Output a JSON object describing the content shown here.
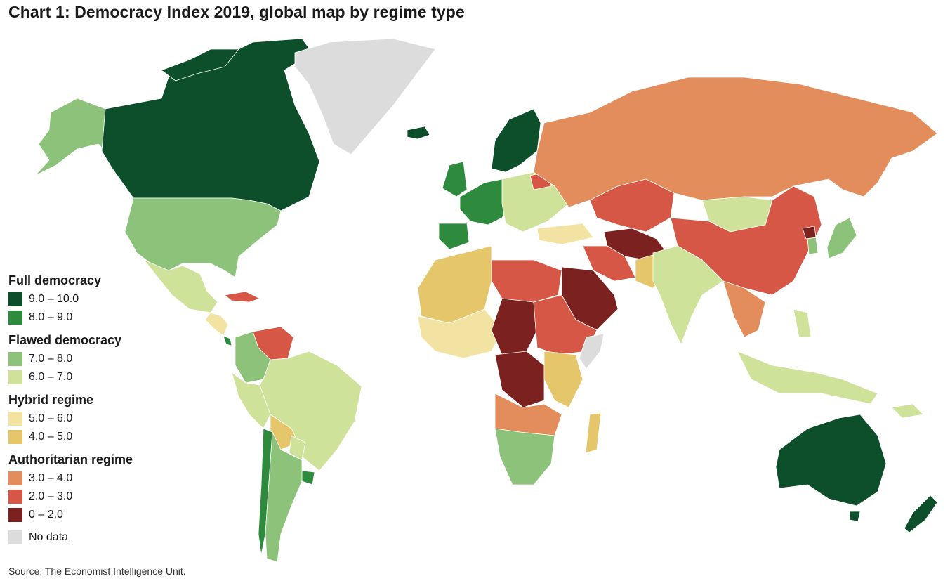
{
  "title": "Chart 1: Democracy Index 2019, global map by regime type",
  "source": "Source: The Economist Intelligence Unit.",
  "legend": {
    "groups": [
      {
        "name": "Full democracy",
        "items": [
          {
            "label": "9.0 – 10.0",
            "color": "#0d4f2b"
          },
          {
            "label": "8.0 – 9.0",
            "color": "#2e8b3e"
          }
        ]
      },
      {
        "name": "Flawed democracy",
        "items": [
          {
            "label": "7.0 – 8.0",
            "color": "#8cc27a"
          },
          {
            "label": "6.0 – 7.0",
            "color": "#cfe29a"
          }
        ]
      },
      {
        "name": "Hybrid regime",
        "items": [
          {
            "label": "5.0 – 6.0",
            "color": "#f3e3a3"
          },
          {
            "label": "4.0 – 5.0",
            "color": "#e6c66b"
          }
        ]
      },
      {
        "name": "Authoritarian regime",
        "items": [
          {
            "label": "3.0 – 4.0",
            "color": "#e38d5c"
          },
          {
            "label": "2.0 – 3.0",
            "color": "#d65745"
          },
          {
            "label": "0 – 2.0",
            "color": "#7b2120"
          }
        ]
      }
    ],
    "nodata": {
      "label": "No data",
      "color": "#dcdcdc"
    }
  },
  "colors": {
    "ocean": "#ffffff",
    "border": "#ffffff",
    "coast": "#6ea8d8"
  }
}
